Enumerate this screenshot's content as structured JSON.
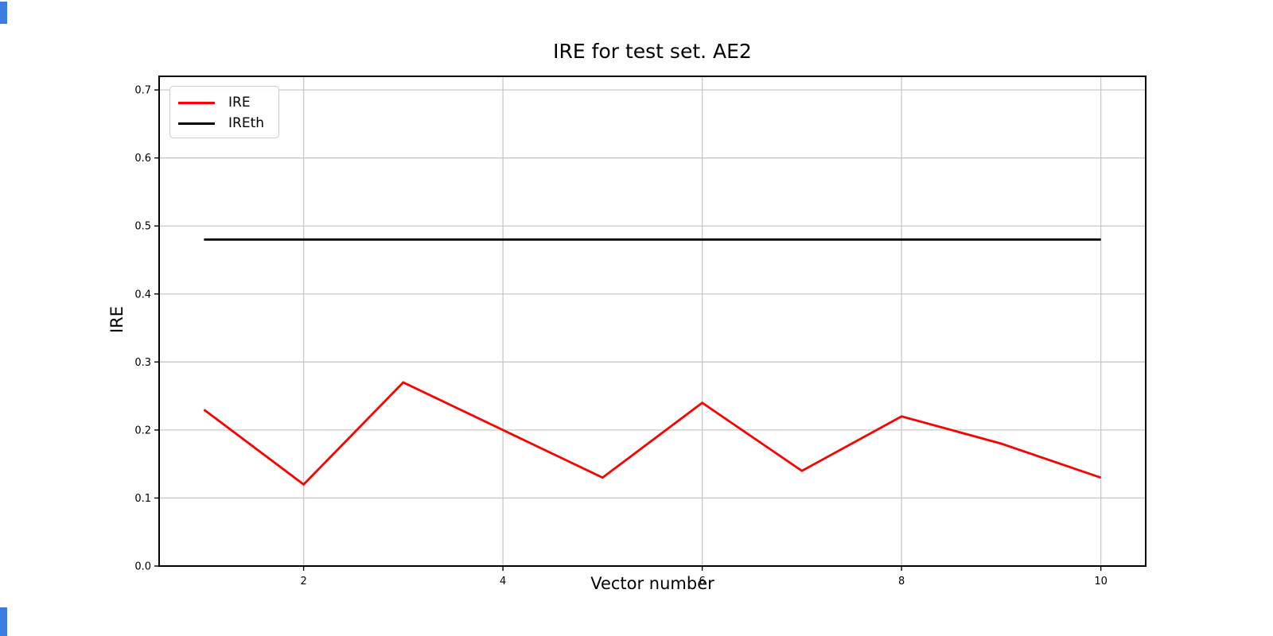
{
  "figure": {
    "title": "IRE for test set. AE2",
    "xlabel": "Vector number",
    "ylabel": "IRE"
  },
  "legend": {
    "entries": [
      {
        "label": "IRE",
        "color": "#ff0000"
      },
      {
        "label": "IREth",
        "color": "#000000"
      }
    ]
  },
  "colors": {
    "series_ire": "#ff0000",
    "series_ireth": "#000000",
    "grid": "#c8c8c8",
    "frame": "#000000",
    "accent_blue": "#3b7de0"
  },
  "chart_data": {
    "type": "line",
    "title": "IRE for test set. AE2",
    "xlabel": "Vector number",
    "ylabel": "IRE",
    "x": [
      1,
      2,
      3,
      4,
      5,
      6,
      7,
      8,
      9,
      10
    ],
    "series": [
      {
        "name": "IRE",
        "color": "#ff0000",
        "values": [
          0.23,
          0.12,
          0.27,
          0.2,
          0.13,
          0.24,
          0.14,
          0.22,
          0.18,
          0.13
        ]
      },
      {
        "name": "IREth",
        "color": "#000000",
        "values": [
          0.48,
          0.48,
          0.48,
          0.48,
          0.48,
          0.48,
          0.48,
          0.48,
          0.48,
          0.48
        ]
      }
    ],
    "xlim": [
      0.55,
      10.45
    ],
    "ylim": [
      0.0,
      0.72
    ],
    "xticks": [
      2,
      4,
      6,
      8,
      10
    ],
    "xtick_labels": [
      "2",
      "4",
      "6",
      "8",
      "10"
    ],
    "yticks": [
      0.0,
      0.1,
      0.2,
      0.3,
      0.4,
      0.5,
      0.6,
      0.7
    ],
    "ytick_labels": [
      "0.0",
      "0.1",
      "0.2",
      "0.3",
      "0.4",
      "0.5",
      "0.6",
      "0.7"
    ],
    "grid": true,
    "legend_position": "upper left"
  }
}
